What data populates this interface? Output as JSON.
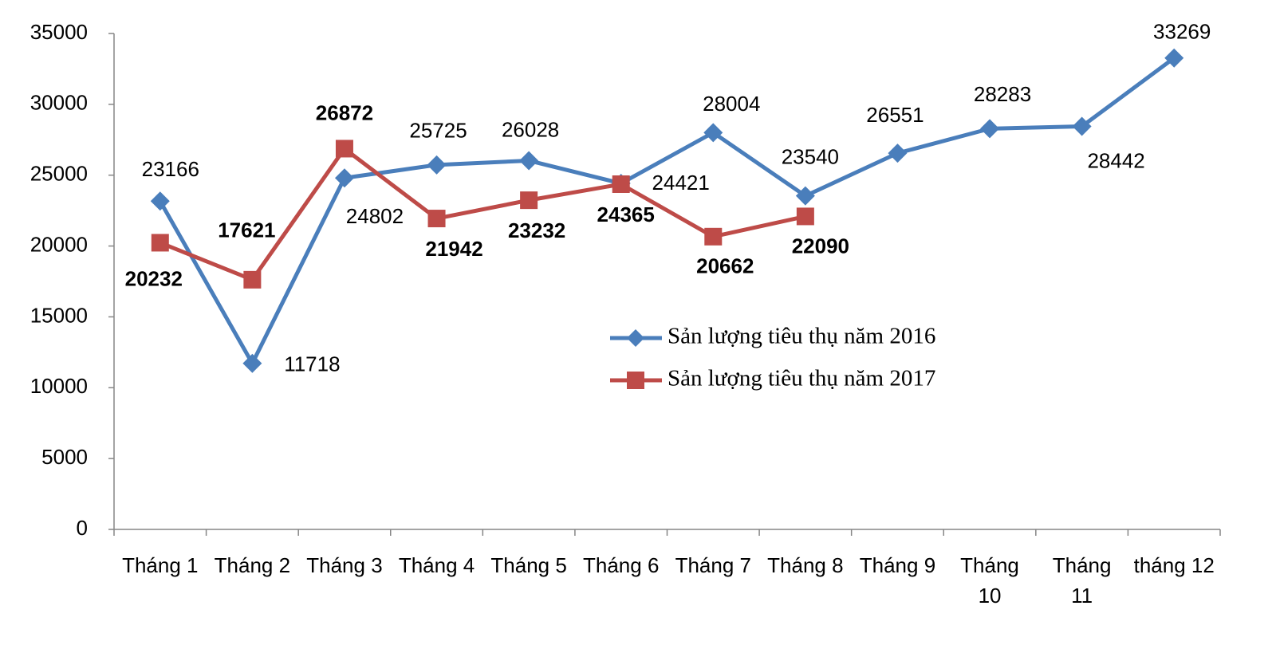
{
  "chart_data": {
    "type": "line",
    "categories": [
      "Tháng 1",
      "Tháng 2",
      "Tháng 3",
      "Tháng 4",
      "Tháng 5",
      "Tháng 6",
      "Tháng 7",
      "Tháng 8",
      "Tháng 9",
      "Tháng 10",
      "Tháng 11",
      "tháng 12"
    ],
    "series": [
      {
        "name": "Sản lượng tiêu thụ năm 2016",
        "color": "#4a7ebb",
        "marker": "diamond",
        "values": [
          23166,
          11718,
          24802,
          25725,
          26028,
          24421,
          28004,
          23540,
          26551,
          28283,
          28442,
          33269
        ]
      },
      {
        "name": "Sản lượng tiêu thụ năm 2017",
        "color": "#be4b48",
        "marker": "square",
        "label_color": "#ff0000",
        "values": [
          20232,
          17621,
          26872,
          21942,
          23232,
          24365,
          20662,
          22090,
          null,
          null,
          null,
          null
        ]
      }
    ],
    "ylim": [
      0,
      35000
    ],
    "yticks": [
      0,
      5000,
      10000,
      15000,
      20000,
      25000,
      30000,
      35000
    ],
    "grid": false
  }
}
